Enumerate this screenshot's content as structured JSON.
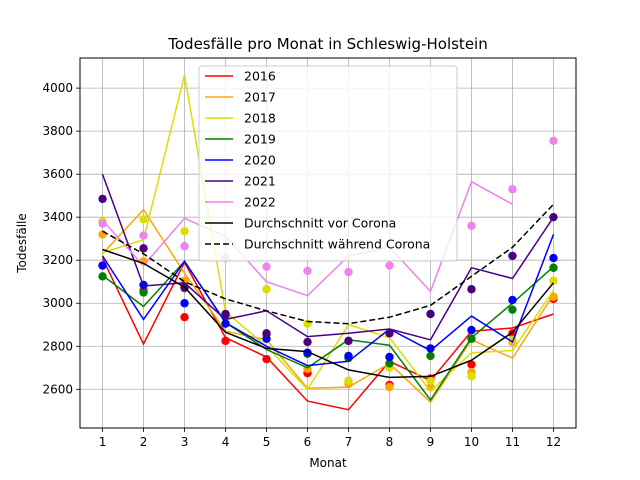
{
  "chart_data": {
    "type": "line",
    "title": "Todesfälle pro Monat in Schleswig-Holstein",
    "xlabel": "Monat",
    "ylabel": "Todesfälle",
    "x": [
      1,
      2,
      3,
      4,
      5,
      6,
      7,
      8,
      9,
      10,
      11,
      12
    ],
    "xlim": [
      0.45,
      12.55
    ],
    "ylim": [
      2420,
      4140
    ],
    "yticks": [
      2600,
      2800,
      3000,
      3200,
      3400,
      3600,
      3800,
      4000
    ],
    "grid": true,
    "legend_position": "top-center",
    "series": [
      {
        "name": "2016",
        "color": "#ff0000",
        "style": "solid",
        "line": [
          3210,
          2810,
          3190,
          2840,
          2750,
          2545,
          2505,
          2730,
          2640,
          2870,
          2885,
          2950
        ],
        "points": [
          3175,
          3060,
          2935,
          2825,
          2740,
          2675,
          2750,
          2620,
          2650,
          2715,
          2860,
          3020
        ]
      },
      {
        "name": "2017",
        "color": "#ffa500",
        "style": "solid",
        "line": [
          3230,
          3435,
          3140,
          2870,
          2830,
          2605,
          2610,
          2720,
          2540,
          2830,
          2745,
          3040
        ],
        "points": [
          3320,
          3195,
          3105,
          2935,
          2860,
          2695,
          2625,
          2610,
          2610,
          2680,
          2820,
          3030
        ]
      },
      {
        "name": "2018",
        "color": "#dddd00",
        "style": "solid",
        "line": [
          3235,
          3295,
          4060,
          2960,
          2800,
          2600,
          2900,
          2840,
          2590,
          2770,
          2780,
          3060
        ],
        "points": [
          3380,
          3390,
          3335,
          2910,
          3065,
          2905,
          2640,
          2700,
          2640,
          2660,
          2830,
          3105
        ]
      },
      {
        "name": "2019",
        "color": "#008000",
        "style": "solid",
        "line": [
          3130,
          2985,
          3195,
          2910,
          2785,
          2700,
          2830,
          2805,
          2550,
          2840,
          3000,
          3170
        ],
        "points": [
          3125,
          3050,
          3070,
          2945,
          2855,
          2765,
          2745,
          2720,
          2755,
          2835,
          2970,
          3165
        ]
      },
      {
        "name": "2020",
        "color": "#0000ff",
        "style": "solid",
        "line": [
          3220,
          2925,
          3195,
          2910,
          2800,
          2710,
          2730,
          2880,
          2780,
          2940,
          2820,
          3320
        ],
        "points": [
          3175,
          3085,
          3000,
          2905,
          2835,
          2770,
          2755,
          2750,
          2790,
          2875,
          3015,
          3210
        ]
      },
      {
        "name": "2021",
        "color": "#4b0082",
        "style": "solid",
        "line": [
          3600,
          3080,
          3095,
          2925,
          2965,
          2845,
          2860,
          2880,
          2830,
          3165,
          3115,
          3400
        ],
        "points": [
          3485,
          3255,
          3075,
          2950,
          2860,
          2820,
          2825,
          2860,
          2950,
          3065,
          3220,
          3400
        ]
      },
      {
        "name": "2022",
        "color": "#ee82ee",
        "style": "solid",
        "line": [
          3385,
          3175,
          3395,
          3310,
          3100,
          3035,
          3220,
          3260,
          3055,
          3565,
          3460,
          null
        ],
        "points": [
          3370,
          3315,
          3265,
          3210,
          3170,
          3150,
          3145,
          3175,
          null,
          3360,
          3530,
          3755
        ]
      },
      {
        "name": "Durchschnitt vor Corona",
        "color": "#000000",
        "style": "solid",
        "line": [
          3250,
          3185,
          3075,
          2865,
          2790,
          2775,
          2690,
          2655,
          2660,
          2735,
          2865,
          3095
        ],
        "points": []
      },
      {
        "name": "Durchschnitt während Corona",
        "color": "#000000",
        "style": "dashed",
        "line": [
          3335,
          3230,
          3100,
          3020,
          2965,
          2915,
          2905,
          2935,
          2990,
          3125,
          3260,
          3460
        ],
        "points": []
      }
    ]
  }
}
